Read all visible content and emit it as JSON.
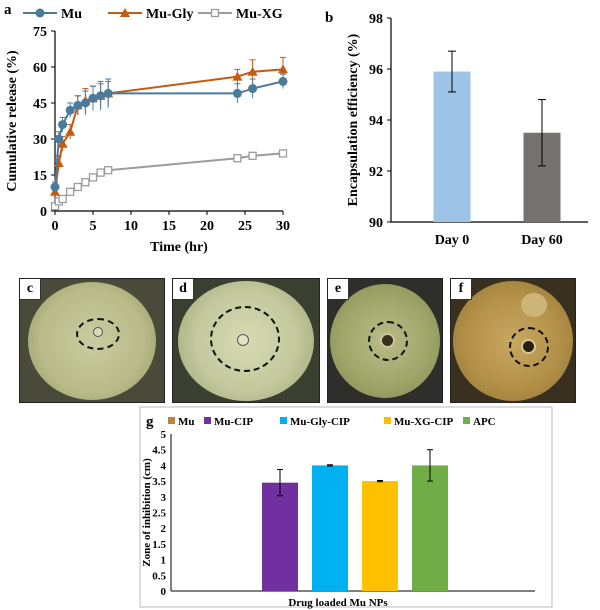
{
  "colors": {
    "mu": "#4b7b9b",
    "mu_gly": "#c55a11",
    "mu_xg": "#9c9c9c",
    "bar_day0": "#9dc3e6",
    "bar_day60": "#767171",
    "g_mu": "#c4813e",
    "g_mucip": "#7030a0",
    "g_mugly": "#00b0f0",
    "g_muxg": "#ffc000",
    "g_apc": "#70ad47"
  },
  "panels": {
    "a": "a",
    "b": "b",
    "c": "c",
    "d": "d",
    "e": "e",
    "f": "f",
    "g": "g"
  },
  "chart_data": [
    {
      "id": "a",
      "type": "line",
      "xlabel": "Time (hr)",
      "ylabel": "Cumulative release (%)",
      "xlim": [
        0,
        30
      ],
      "ylim": [
        0,
        75
      ],
      "xticks": [
        0,
        5,
        10,
        15,
        20,
        25,
        30
      ],
      "yticks": [
        0,
        15,
        30,
        45,
        60,
        75
      ],
      "x": [
        0,
        0.5,
        1,
        2,
        3,
        4,
        5,
        6,
        7,
        24,
        26,
        30
      ],
      "series": [
        {
          "name": "Mu",
          "marker": "circle",
          "values": [
            10,
            30,
            36,
            42,
            44,
            45,
            47,
            48,
            49,
            49,
            51,
            54
          ],
          "err": [
            2,
            3,
            3,
            3,
            4,
            5,
            5,
            6,
            6,
            4,
            4,
            3
          ]
        },
        {
          "name": "Mu-Gly",
          "marker": "triangle",
          "values": [
            8,
            20,
            28,
            33,
            44,
            46,
            47,
            48,
            49,
            56,
            58,
            59
          ],
          "err": [
            2,
            3,
            3,
            3,
            4,
            5,
            5,
            5,
            5,
            3,
            5,
            5
          ]
        },
        {
          "name": "Mu-XG",
          "marker": "square",
          "values": [
            2,
            4,
            5,
            8,
            10,
            12,
            14,
            16,
            17,
            22,
            23,
            24
          ],
          "err": [
            1,
            1,
            1,
            1,
            1,
            1,
            1,
            1,
            1,
            1,
            1,
            1
          ]
        }
      ]
    },
    {
      "id": "b",
      "type": "bar",
      "ylabel": "Encapsulation efficiency (%)",
      "ylim": [
        90,
        98
      ],
      "yticks": [
        90,
        92,
        94,
        96,
        98
      ],
      "categories": [
        "Day 0",
        "Day 60"
      ],
      "values": [
        95.9,
        93.5
      ],
      "err": [
        0.8,
        1.3
      ]
    },
    {
      "id": "g",
      "type": "bar",
      "xlabel": "Drug loaded Mu NPs",
      "ylabel": "Zone of inhibition (cm)",
      "ylim": [
        0,
        5
      ],
      "yticks": [
        0,
        0.5,
        1,
        1.5,
        2,
        2.5,
        3,
        3.5,
        4,
        4.5,
        5
      ],
      "series": [
        {
          "name": "Mu",
          "value": 0,
          "err": 0
        },
        {
          "name": "Mu-CIP",
          "value": 3.45,
          "err": 0.42
        },
        {
          "name": "Mu-Gly-CIP",
          "value": 4.0,
          "err": 0.02
        },
        {
          "name": "Mu-XG-CIP",
          "value": 3.5,
          "err": 0.02
        },
        {
          "name": "APC",
          "value": 4.0,
          "err": 0.5
        }
      ]
    }
  ]
}
